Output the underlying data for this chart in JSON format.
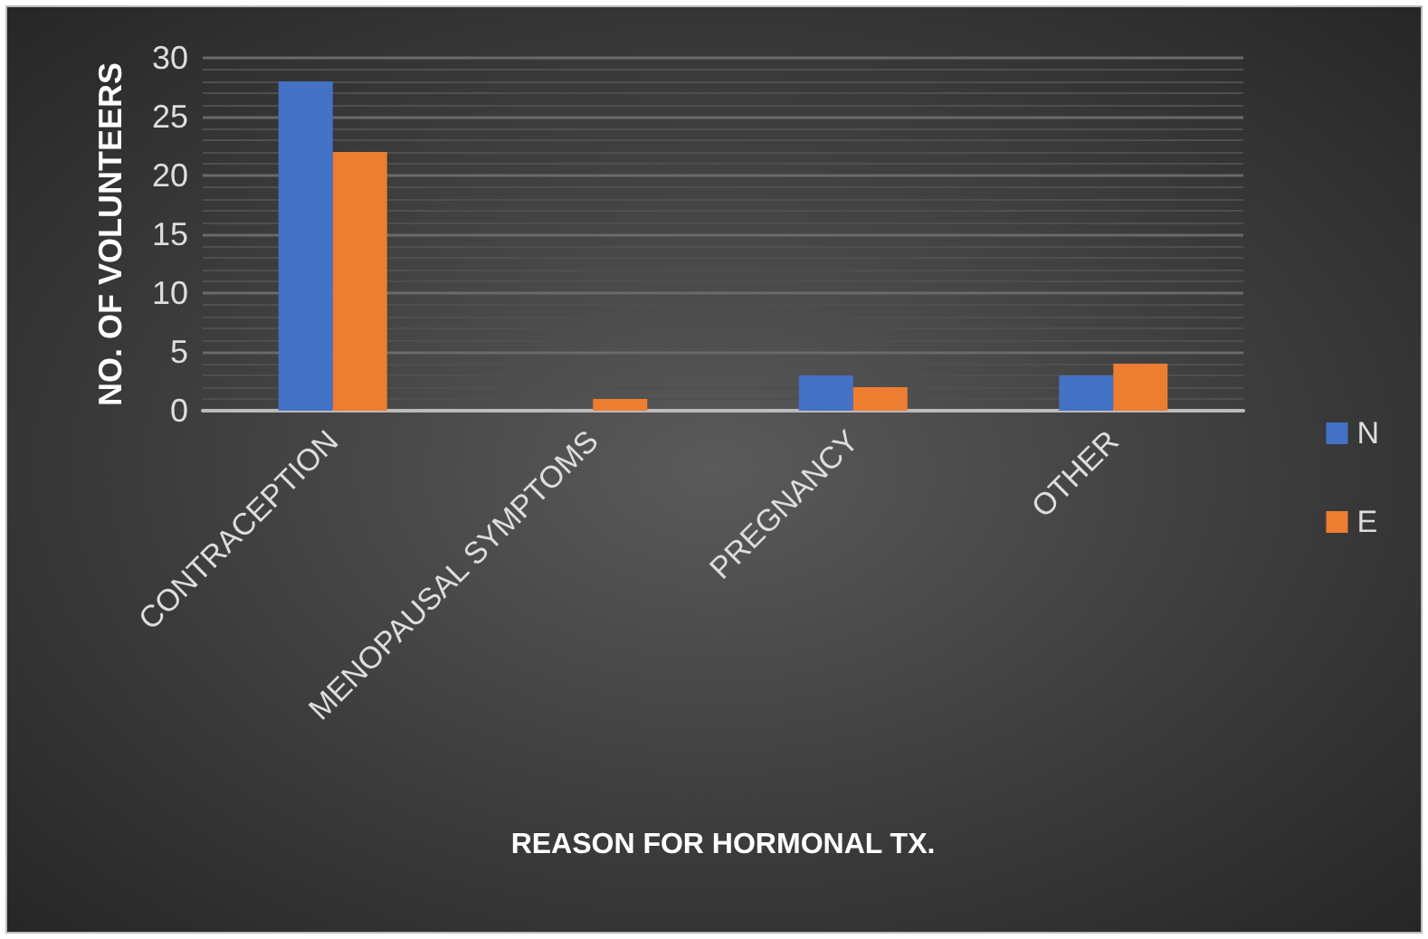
{
  "chart_data": {
    "type": "bar",
    "xlabel": "REASON FOR HORMONAL TX.",
    "ylabel": "NO. OF VOLUNTEERS",
    "categories": [
      "CONTRACEPTION",
      "MENOPAUSAL SYMPTOMS",
      "PREGNANCY",
      "OTHER"
    ],
    "series": [
      {
        "name": "N",
        "color": "#4472c4",
        "values": [
          28,
          0,
          3,
          3
        ]
      },
      {
        "name": "E",
        "color": "#ed7d31",
        "values": [
          22,
          1,
          2,
          4
        ]
      }
    ],
    "ylim": [
      0,
      30
    ],
    "yticks": [
      0,
      5,
      10,
      15,
      20,
      25,
      30
    ],
    "grid": "y",
    "legend": "right"
  }
}
